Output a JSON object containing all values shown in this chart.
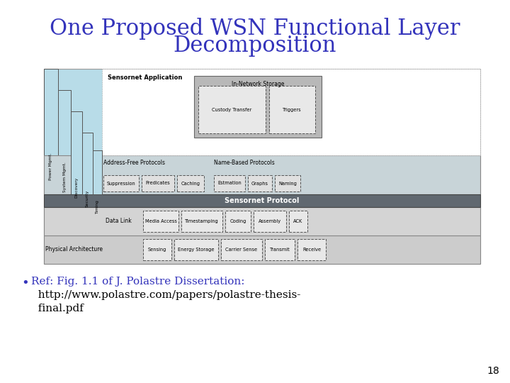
{
  "title_line1": "One Proposed WSN Functional Layer",
  "title_line2": "Decomposition",
  "title_color": "#3333bb",
  "title_fontsize": 22,
  "bg_color": "#ffffff",
  "bullet_color": "#3333bb",
  "bullet_text1": "Ref: Fig. 1.1 of J. Polastre Dissertation:",
  "bullet_text2": "  http://www.polastre.com/papers/polastre-thesis-",
  "bullet_text3": "  final.pdf",
  "page_number": "18",
  "diagram": {
    "light_blue": "#b8dce8",
    "mid_blue": "#a8ccd8",
    "dark_gray_bar": "#606870",
    "light_gray1": "#c8c8c8",
    "light_gray2": "#d4d4d4",
    "light_gray3": "#e0e0e0",
    "white": "#ffffff",
    "ins_gray": "#b8b8b8",
    "vertical_labels": [
      "Power Mgmt.",
      "System Mgmt.",
      "Discovery",
      "Security",
      "Timing"
    ],
    "layers": {
      "sensornet_app": "Sensornet Application",
      "in_network": "In-Network Storage",
      "custody": "Custody Transfer",
      "triggers": "Triggers",
      "addr_free": "Address-Free Protocols",
      "name_based": "Name-Based Protocols",
      "suppression": "Suppression",
      "predicates": "Predicates",
      "caching": "Caching",
      "estmation": "Estmation",
      "graphs": "Graphs",
      "naming": "Naming",
      "sensornet_proto": "Sensornet Protocol",
      "data_link": "Data Link",
      "media_access": "Media Access",
      "timestamping": "Timestamping",
      "coding": "Coding",
      "assembly": "Assembly",
      "ack": "ACK",
      "physical": "Physical Architecture",
      "sensing": "Sensing",
      "energy_storage": "Energy Storage",
      "carrier_sense": "Carrier Sense",
      "transmit": "Transmit",
      "receive": "Receive"
    }
  }
}
